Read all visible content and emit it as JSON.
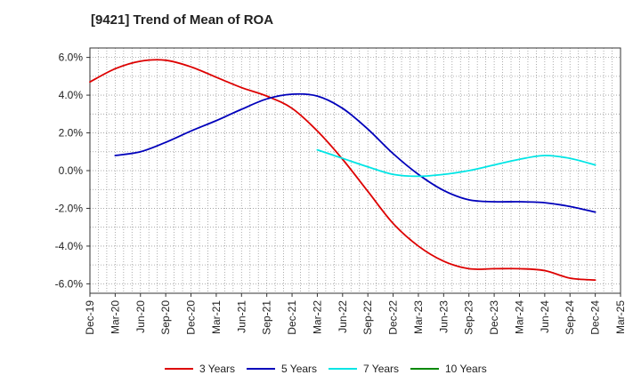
{
  "chart_data": {
    "type": "line",
    "title": "[9421]  Trend of Mean of ROA",
    "x": [
      "Dec-19",
      "Mar-20",
      "Jun-20",
      "Sep-20",
      "Dec-20",
      "Mar-21",
      "Jun-21",
      "Sep-21",
      "Dec-21",
      "Mar-22",
      "Jun-22",
      "Sep-22",
      "Dec-22",
      "Mar-23",
      "Jun-23",
      "Sep-23",
      "Dec-23",
      "Mar-24",
      "Jun-24",
      "Sep-24",
      "Dec-24",
      "Mar-25"
    ],
    "y_ticks": [
      "6.0%",
      "4.0%",
      "2.0%",
      "0.0%",
      "-2.0%",
      "-4.0%",
      "-6.0%"
    ],
    "y_tick_values": [
      6,
      4,
      2,
      0,
      -2,
      -4,
      -6
    ],
    "ylim": [
      -6.5,
      6.5
    ],
    "grid": true,
    "legend_position": "bottom",
    "series": [
      {
        "name": "3 Years",
        "color": "#dd0000",
        "values": [
          4.7,
          5.4,
          5.8,
          5.85,
          5.5,
          4.95,
          4.4,
          3.95,
          3.3,
          2.1,
          0.6,
          -1.1,
          -2.8,
          -4.0,
          -4.8,
          -5.2,
          -5.2,
          -5.2,
          -5.3,
          -5.7,
          -5.8,
          null
        ]
      },
      {
        "name": "5 Years",
        "color": "#0000bb",
        "values": [
          null,
          0.8,
          1.0,
          1.5,
          2.1,
          2.65,
          3.25,
          3.8,
          4.05,
          3.95,
          3.3,
          2.2,
          0.9,
          -0.2,
          -1.05,
          -1.55,
          -1.65,
          -1.65,
          -1.7,
          -1.9,
          -2.2,
          null
        ]
      },
      {
        "name": "7 Years",
        "color": "#00e5e5",
        "values": [
          null,
          null,
          null,
          null,
          null,
          null,
          null,
          null,
          null,
          1.1,
          0.65,
          0.2,
          -0.2,
          -0.3,
          -0.2,
          0.0,
          0.3,
          0.6,
          0.8,
          0.65,
          0.3,
          null
        ]
      },
      {
        "name": "10 Years",
        "color": "#008800",
        "values": [
          null,
          null,
          null,
          null,
          null,
          null,
          null,
          null,
          null,
          null,
          null,
          null,
          null,
          null,
          null,
          null,
          null,
          null,
          null,
          null,
          null,
          null
        ]
      }
    ]
  }
}
